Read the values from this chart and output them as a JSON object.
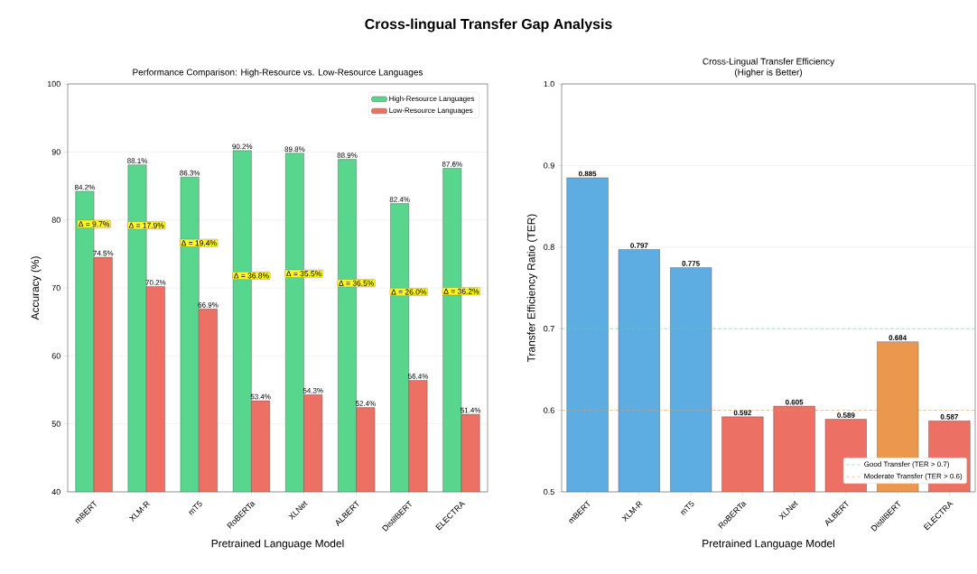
{
  "chart_data": [
    {
      "type": "bar",
      "title": "Cross-lingual Transfer Gap Analysis",
      "subtitle": "Performance Comparison: High-Resource vs. Low-Resource Languages",
      "xlabel": "Pretrained Language Model",
      "ylabel": "Accuracy (%)",
      "categories": [
        "mBERT",
        "XLM-R",
        "mT5",
        "RoBERTa",
        "XLNet",
        "ALBERT",
        "DistilBERT",
        "ELECTRA"
      ],
      "series": [
        {
          "name": "High-Resource Languages",
          "color": "#58d68d",
          "values": [
            84.2,
            88.1,
            86.3,
            90.2,
            89.8,
            88.9,
            82.4,
            87.6
          ],
          "value_labels": [
            "84.2%",
            "88.1%",
            "86.3%",
            "90.2%",
            "89.8%",
            "88.9%",
            "82.4%",
            "87.6%"
          ]
        },
        {
          "name": "Low-Resource Languages",
          "color": "#ec7063",
          "values": [
            74.5,
            70.2,
            66.9,
            53.4,
            54.3,
            52.4,
            56.4,
            51.4
          ],
          "value_labels": [
            "74.5%",
            "70.2%",
            "66.9%",
            "53.4%",
            "54.3%",
            "52.4%",
            "56.4%",
            "51.4%"
          ]
        }
      ],
      "annotations": [
        {
          "text": "Δ = 9.7%",
          "x": "mBERT",
          "y": 79.4
        },
        {
          "text": "Δ = 17.9%",
          "x": "XLM-R",
          "y": 79.2
        },
        {
          "text": "Δ = 19.4%",
          "x": "mT5",
          "y": 76.6
        },
        {
          "text": "Δ = 36.8%",
          "x": "RoBERTa",
          "y": 71.8
        },
        {
          "text": "Δ = 35.5%",
          "x": "XLNet",
          "y": 72.1
        },
        {
          "text": "Δ = 36.5%",
          "x": "ALBERT",
          "y": 70.7
        },
        {
          "text": "Δ = 26.0%",
          "x": "DistilBERT",
          "y": 69.4
        },
        {
          "text": "Δ = 36.2%",
          "x": "ELECTRA",
          "y": 69.5
        }
      ],
      "ylim": [
        40,
        100
      ],
      "yticks": [
        40,
        50,
        60,
        70,
        80,
        90,
        100
      ],
      "grid": "y",
      "legend": "top right"
    },
    {
      "type": "bar",
      "title": "Cross-Lingual Transfer Efficiency",
      "subtitle": "(Higher is Better)",
      "xlabel": "Pretrained Language Model",
      "ylabel": "Transfer Efficiency Ratio (TER)",
      "categories": [
        "mBERT",
        "XLM-R",
        "mT5",
        "RoBERTa",
        "XLNet",
        "ALBERT",
        "DistilBERT",
        "ELECTRA"
      ],
      "values": [
        0.885,
        0.797,
        0.775,
        0.592,
        0.605,
        0.589,
        0.684,
        0.587
      ],
      "colors": [
        "#5dade2",
        "#5dade2",
        "#5dade2",
        "#ec7063",
        "#ec7063",
        "#ec7063",
        "#eb984e",
        "#ec7063"
      ],
      "data_labels": true,
      "ref_lines": [
        {
          "axis": "y",
          "value": 0.7,
          "label": "Good Transfer (TER > 0.7)",
          "color": "#58d68d",
          "line_style": "dashed"
        },
        {
          "axis": "y",
          "value": 0.6,
          "label": "Moderate Transfer (TER > 0.6)",
          "color": "#eb984e",
          "line_style": "dashed"
        }
      ],
      "ylim": [
        0.5,
        1.0
      ],
      "yticks": [
        0.5,
        0.6,
        0.7,
        0.8,
        0.9,
        {
          "value": 1.0,
          "label": "1.0"
        }
      ],
      "grid": "y",
      "legend": "bottom right"
    }
  ]
}
